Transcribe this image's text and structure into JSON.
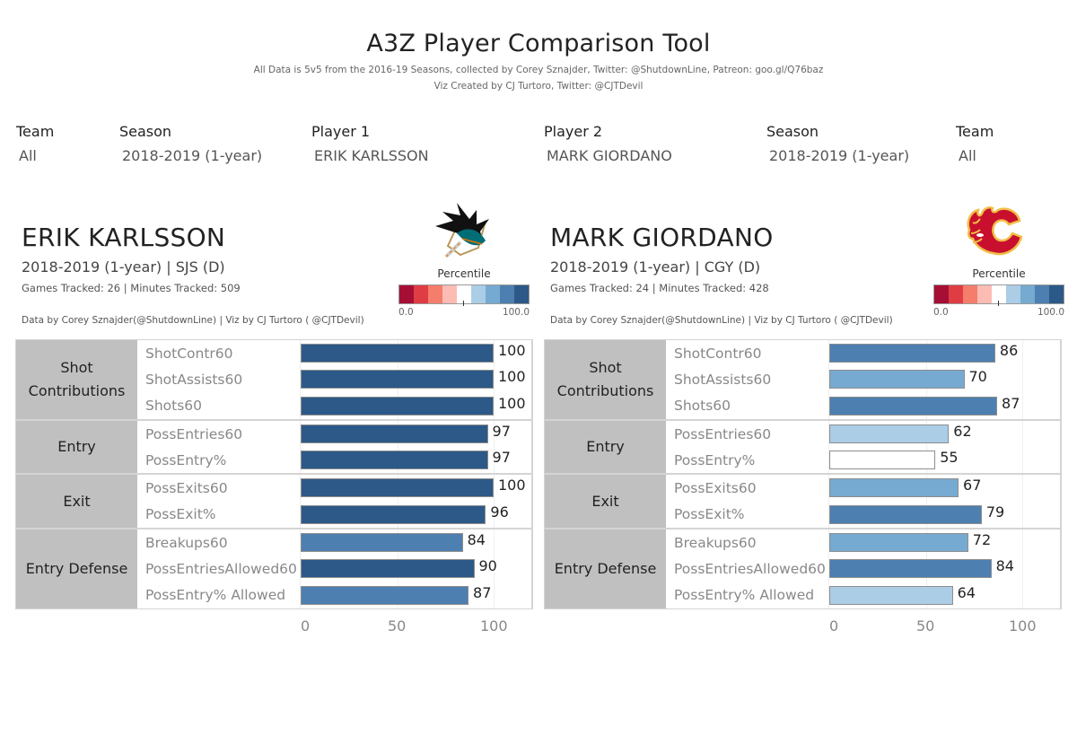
{
  "header": {
    "title": "A3Z Player Comparison Tool",
    "subtitle_line1": "All Data is 5v5 from the 2016-19 Seasons, collected by Corey Sznajder, Twitter: @ShutdownLine, Patreon: goo.gl/Q76baz",
    "subtitle_line2": "Viz Created by CJ Turtoro, Twitter: @CJTDevil"
  },
  "filters": [
    {
      "label": "Team",
      "value": "All"
    },
    {
      "label": "Season",
      "value": "2018-2019 (1-year)"
    },
    {
      "label": "Player 1",
      "value": "ERIK KARLSSON"
    },
    {
      "label": "Player 2",
      "value": "MARK GIORDANO"
    },
    {
      "label": "Season",
      "value": "2018-2019 (1-year)"
    },
    {
      "label": "Team",
      "value": "All"
    }
  ],
  "legend": {
    "title": "Percentile",
    "min": "0.0",
    "max": "100.0",
    "colors": [
      "#a50f35",
      "#e03c44",
      "#f47d6b",
      "#fdbcb3",
      "#ffffff",
      "#abcde6",
      "#76aad0",
      "#4d7fb0",
      "#2c5987"
    ]
  },
  "players": [
    {
      "name": "ERIK KARLSSON",
      "season_team": "2018-2019 (1-year) | SJS (D)",
      "games_minutes": "Games Tracked: 26  | Minutes Tracked: 509",
      "credit": "Data by Corey Sznajder(@ShutdownLine) | Viz by CJ Turtoro ( @CJTDevil)",
      "logo": "sharks-logo-icon"
    },
    {
      "name": "MARK GIORDANO",
      "season_team": "2018-2019 (1-year) | CGY (D)",
      "games_minutes": "Games Tracked: 24  | Minutes Tracked: 428",
      "credit": "Data by Corey Sznajder(@ShutdownLine) | Viz by CJ Turtoro ( @CJTDevil)",
      "logo": "flames-logo-icon"
    }
  ],
  "axis": {
    "ticks": [
      "0",
      "50",
      "100"
    ]
  },
  "chart_data": [
    {
      "type": "bar",
      "orientation": "horizontal",
      "title": "ERIK KARLSSON — Percentile",
      "xlabel": "",
      "ylabel": "",
      "xlim": [
        0,
        100
      ],
      "grid": true,
      "groups": [
        {
          "category": "Shot Contributions",
          "metrics": [
            {
              "label": "ShotContr60",
              "value": 100,
              "color": "#2c5987"
            },
            {
              "label": "ShotAssists60",
              "value": 100,
              "color": "#2c5987"
            },
            {
              "label": "Shots60",
              "value": 100,
              "color": "#2c5987"
            }
          ]
        },
        {
          "category": "Entry",
          "metrics": [
            {
              "label": "PossEntries60",
              "value": 97,
              "color": "#2c5987"
            },
            {
              "label": "PossEntry%",
              "value": 97,
              "color": "#2c5987"
            }
          ]
        },
        {
          "category": "Exit",
          "metrics": [
            {
              "label": "PossExits60",
              "value": 100,
              "color": "#2c5987"
            },
            {
              "label": "PossExit%",
              "value": 96,
              "color": "#2c5987"
            }
          ]
        },
        {
          "category": "Entry Defense",
          "metrics": [
            {
              "label": "Breakups60",
              "value": 84,
              "color": "#4d7fb0"
            },
            {
              "label": "PossEntriesAllowed60",
              "value": 90,
              "color": "#2c5987"
            },
            {
              "label": "PossEntry% Allowed",
              "value": 87,
              "color": "#4d7fb0"
            }
          ]
        }
      ],
      "x_ticks": [
        0,
        50,
        100
      ]
    },
    {
      "type": "bar",
      "orientation": "horizontal",
      "title": "MARK GIORDANO — Percentile",
      "xlabel": "",
      "ylabel": "",
      "xlim": [
        0,
        100
      ],
      "grid": true,
      "groups": [
        {
          "category": "Shot Contributions",
          "metrics": [
            {
              "label": "ShotContr60",
              "value": 86,
              "color": "#4d7fb0"
            },
            {
              "label": "ShotAssists60",
              "value": 70,
              "color": "#76aad0"
            },
            {
              "label": "Shots60",
              "value": 87,
              "color": "#4d7fb0"
            }
          ]
        },
        {
          "category": "Entry",
          "metrics": [
            {
              "label": "PossEntries60",
              "value": 62,
              "color": "#abcde6"
            },
            {
              "label": "PossEntry%",
              "value": 55,
              "color": "#ffffff"
            }
          ]
        },
        {
          "category": "Exit",
          "metrics": [
            {
              "label": "PossExits60",
              "value": 67,
              "color": "#76aad0"
            },
            {
              "label": "PossExit%",
              "value": 79,
              "color": "#4d7fb0"
            }
          ]
        },
        {
          "category": "Entry Defense",
          "metrics": [
            {
              "label": "Breakups60",
              "value": 72,
              "color": "#76aad0"
            },
            {
              "label": "PossEntriesAllowed60",
              "value": 84,
              "color": "#4d7fb0"
            },
            {
              "label": "PossEntry% Allowed",
              "value": 64,
              "color": "#abcde6"
            }
          ]
        }
      ],
      "x_ticks": [
        0,
        50,
        100
      ]
    }
  ]
}
